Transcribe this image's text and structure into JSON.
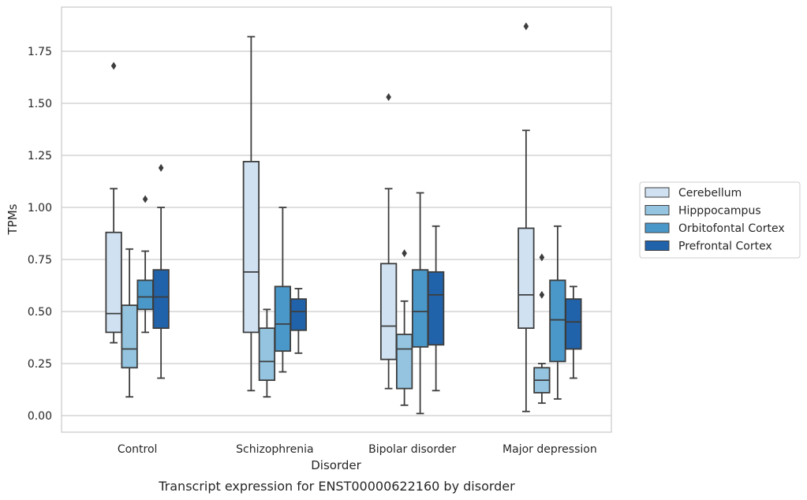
{
  "chart_data": {
    "type": "box",
    "title": "",
    "caption": "Transcript expression for ENST00000622160 by disorder",
    "xlabel": "Disorder",
    "ylabel": "TPMs",
    "ylim": [
      -0.08,
      1.97
    ],
    "yticks": [
      "0.00",
      "0.25",
      "0.50",
      "0.75",
      "1.00",
      "1.25",
      "1.50",
      "1.75"
    ],
    "ytick_values": [
      0,
      0.25,
      0.5,
      0.75,
      1.0,
      1.25,
      1.5,
      1.75
    ],
    "grid": "horizontal",
    "legend_position": "right",
    "categories": [
      "Control",
      "Schizophrenia",
      "Bipolar disorder",
      "Major depression"
    ],
    "series": [
      {
        "name": "Cerebellum",
        "color": "#d0e1f2",
        "boxes": [
          {
            "whislo": 0.35,
            "q1": 0.4,
            "med": 0.49,
            "q3": 0.88,
            "whishi": 1.09,
            "fliers": [
              1.68
            ]
          },
          {
            "whislo": 0.12,
            "q1": 0.4,
            "med": 0.69,
            "q3": 1.22,
            "whishi": 1.82,
            "fliers": []
          },
          {
            "whislo": 0.13,
            "q1": 0.27,
            "med": 0.43,
            "q3": 0.73,
            "whishi": 1.09,
            "fliers": [
              1.53
            ]
          },
          {
            "whislo": 0.02,
            "q1": 0.42,
            "med": 0.58,
            "q3": 0.9,
            "whishi": 1.37,
            "fliers": [
              1.87
            ]
          }
        ]
      },
      {
        "name": "Hipppocampus",
        "color": "#94c4df",
        "boxes": [
          {
            "whislo": 0.09,
            "q1": 0.23,
            "med": 0.32,
            "q3": 0.53,
            "whishi": 0.8,
            "fliers": []
          },
          {
            "whislo": 0.09,
            "q1": 0.17,
            "med": 0.26,
            "q3": 0.42,
            "whishi": 0.51,
            "fliers": []
          },
          {
            "whislo": 0.05,
            "q1": 0.13,
            "med": 0.32,
            "q3": 0.39,
            "whishi": 0.55,
            "fliers": [
              0.78
            ]
          },
          {
            "whislo": 0.06,
            "q1": 0.11,
            "med": 0.17,
            "q3": 0.23,
            "whishi": 0.25,
            "fliers": [
              0.58,
              0.76
            ]
          }
        ]
      },
      {
        "name": "Orbitofontal Cortex",
        "color": "#4a98c9",
        "boxes": [
          {
            "whislo": 0.4,
            "q1": 0.51,
            "med": 0.57,
            "q3": 0.65,
            "whishi": 0.79,
            "fliers": [
              1.04
            ]
          },
          {
            "whislo": 0.21,
            "q1": 0.31,
            "med": 0.44,
            "q3": 0.62,
            "whishi": 1.0,
            "fliers": []
          },
          {
            "whislo": 0.01,
            "q1": 0.33,
            "med": 0.5,
            "q3": 0.7,
            "whishi": 1.07,
            "fliers": []
          },
          {
            "whislo": 0.08,
            "q1": 0.26,
            "med": 0.46,
            "q3": 0.65,
            "whishi": 0.91,
            "fliers": []
          }
        ]
      },
      {
        "name": "Prefrontal Cortex",
        "color": "#2163aa",
        "boxes": [
          {
            "whislo": 0.18,
            "q1": 0.42,
            "med": 0.57,
            "q3": 0.7,
            "whishi": 1.0,
            "fliers": [
              1.19
            ]
          },
          {
            "whislo": 0.3,
            "q1": 0.41,
            "med": 0.5,
            "q3": 0.56,
            "whishi": 0.61,
            "fliers": []
          },
          {
            "whislo": 0.12,
            "q1": 0.34,
            "med": 0.58,
            "q3": 0.69,
            "whishi": 0.91,
            "fliers": []
          },
          {
            "whislo": 0.18,
            "q1": 0.32,
            "med": 0.45,
            "q3": 0.56,
            "whishi": 0.62,
            "fliers": []
          }
        ]
      }
    ]
  }
}
